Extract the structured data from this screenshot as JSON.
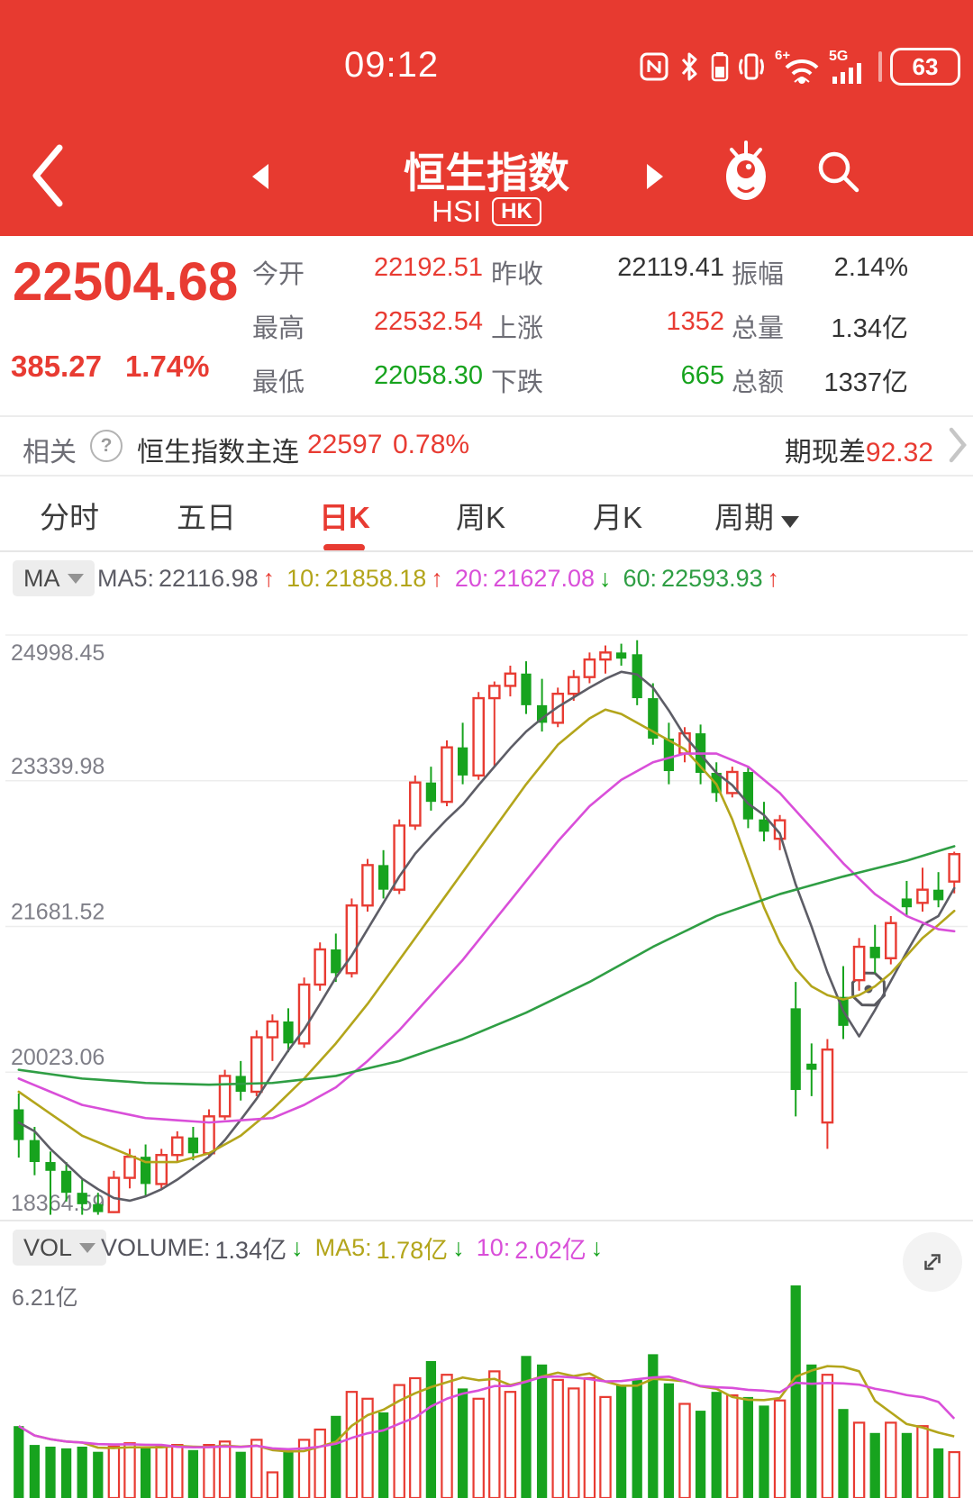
{
  "colors": {
    "up": "#e83b32",
    "down": "#17a31e",
    "neutral": "#333333",
    "header_red": "#e73a30"
  },
  "status_bar": {
    "time": "09:12",
    "wifi_label": "6+",
    "signal_label": "5G",
    "battery_percent": "63"
  },
  "header": {
    "title": "恒生指数",
    "symbol": "HSI",
    "market_badge": "HK"
  },
  "quote": {
    "last_price": "22504.68",
    "change": "385.27",
    "change_percent": "1.74%",
    "stats": [
      {
        "label": "今开",
        "value": "22192.51",
        "color": "up"
      },
      {
        "label": "昨收",
        "value": "22119.41",
        "color": "neutral"
      },
      {
        "label": "振幅",
        "value": "2.14%",
        "color": "neutral"
      },
      {
        "label": "最高",
        "value": "22532.54",
        "color": "up"
      },
      {
        "label": "上涨",
        "value": "1352",
        "color": "up"
      },
      {
        "label": "总量",
        "value": "1.34亿",
        "color": "neutral"
      },
      {
        "label": "最低",
        "value": "22058.30",
        "color": "down"
      },
      {
        "label": "下跌",
        "value": "665",
        "color": "down"
      },
      {
        "label": "总额",
        "value": "1337亿",
        "color": "neutral"
      }
    ]
  },
  "related": {
    "label": "相关",
    "contract_name": "恒生指数主连",
    "price": "22597",
    "change_percent": "0.78%",
    "basis_label": "期现差",
    "basis_value": "92.32"
  },
  "tabs": {
    "items": [
      "分时",
      "五日",
      "日K",
      "周K",
      "月K"
    ],
    "active": "日K",
    "period_label": "周期"
  },
  "ma_panel": {
    "selector_label": "MA",
    "items": [
      {
        "label": "MA5:",
        "value": "22116.98",
        "arrow": "↑",
        "color": "#5d5d66",
        "arrow_color": "#e83b32"
      },
      {
        "label": "10:",
        "value": "21858.18",
        "arrow": "↑",
        "color": "#b3a51b",
        "arrow_color": "#e83b32"
      },
      {
        "label": "20:",
        "value": "21627.08",
        "arrow": "↓",
        "color": "#d94fd9",
        "arrow_color": "#17a31e"
      },
      {
        "label": "60:",
        "value": "22593.93",
        "arrow": "↑",
        "color": "#2f9e44",
        "arrow_color": "#e83b32"
      }
    ]
  },
  "vol_panel": {
    "selector_label": "VOL",
    "items": [
      {
        "label": "VOLUME:",
        "value": "1.34亿",
        "arrow": "↓",
        "color": "#55555e",
        "arrow_color": "#17a31e"
      },
      {
        "label": "MA5:",
        "value": "1.78亿",
        "arrow": "↓",
        "color": "#b3a51b",
        "arrow_color": "#17a31e"
      },
      {
        "label": "10:",
        "value": "2.02亿",
        "arrow": "↓",
        "color": "#d94fd9",
        "arrow_color": "#17a31e"
      }
    ]
  },
  "chart_data": [
    {
      "type": "candlestick",
      "title": "恒生指数 日K",
      "y_axis_labels": [
        "24998.45",
        "23339.98",
        "21681.52",
        "20023.06",
        "18364.59"
      ],
      "y_min": 18364.59,
      "y_max": 24998.45,
      "up_color": "#e83b32",
      "down_color": "#17a31e",
      "grid": true,
      "open": [
        19600,
        19250,
        19000,
        18900,
        18650,
        18520,
        18430,
        18820,
        19060,
        18750,
        19080,
        19280,
        19100,
        19520,
        19980,
        19800,
        20420,
        20600,
        20350,
        21020,
        21420,
        21150,
        21920,
        22380,
        22100,
        22830,
        23320,
        23100,
        23720,
        23400,
        24280,
        24420,
        24560,
        24200,
        24000,
        24330,
        24520,
        24720,
        24800,
        24780,
        24280,
        23820,
        23650,
        23880,
        23430,
        23200,
        23440,
        22900,
        22680,
        20750,
        20120,
        19450,
        20880,
        21070,
        21450,
        21320,
        22000,
        21950,
        22100,
        22192.51
      ],
      "high": [
        19780,
        19400,
        19120,
        19000,
        18800,
        18650,
        18900,
        19150,
        19200,
        19150,
        19350,
        19400,
        19600,
        20050,
        20150,
        20500,
        20680,
        20750,
        21100,
        21500,
        21600,
        22000,
        22450,
        22550,
        22900,
        23400,
        23500,
        23800,
        24000,
        24350,
        24470,
        24650,
        24700,
        24500,
        24400,
        24600,
        24800,
        24880,
        24900,
        24940,
        24450,
        24000,
        23950,
        23980,
        23550,
        23500,
        23500,
        23100,
        22950,
        21050,
        20350,
        20400,
        21230,
        21550,
        21700,
        21800,
        22200,
        22350,
        22300,
        22532.54
      ],
      "low": [
        19050,
        18850,
        18400,
        18550,
        18400,
        18400,
        18420,
        18700,
        18600,
        18700,
        19000,
        19020,
        19050,
        19480,
        19700,
        19750,
        20150,
        20250,
        20300,
        20950,
        21050,
        21100,
        21850,
        22000,
        22050,
        22780,
        23000,
        23050,
        23300,
        23350,
        23500,
        24300,
        24100,
        23900,
        23950,
        24250,
        24450,
        24560,
        24650,
        24200,
        23750,
        23300,
        23550,
        23300,
        23100,
        23150,
        22800,
        22650,
        22550,
        19520,
        19750,
        19150,
        20400,
        20950,
        21150,
        21250,
        21800,
        21850,
        21900,
        22058.3
      ],
      "close": [
        19250,
        19000,
        18900,
        18650,
        18520,
        18430,
        18820,
        19060,
        18750,
        19080,
        19280,
        19100,
        19520,
        19980,
        19800,
        20420,
        20600,
        20350,
        21020,
        21420,
        21150,
        21920,
        22380,
        22100,
        22830,
        23320,
        23100,
        23720,
        23400,
        24280,
        24420,
        24560,
        24200,
        24000,
        24330,
        24520,
        24720,
        24800,
        24730,
        24280,
        23820,
        23450,
        23880,
        23430,
        23200,
        23440,
        22900,
        22760,
        22890,
        19820,
        20050,
        20280,
        20550,
        21450,
        21320,
        21720,
        21900,
        22100,
        21980,
        22504.68
      ],
      "ma_series": [
        {
          "name": "MA5",
          "color": "#5d5d66",
          "values": [
            19450,
            19350,
            19150,
            18980,
            18810,
            18690,
            18590,
            18560,
            18610,
            18690,
            18800,
            18930,
            19060,
            19250,
            19480,
            19720,
            20000,
            20270,
            20510,
            20800,
            21100,
            21350,
            21650,
            21950,
            22250,
            22510,
            22710,
            22900,
            23070,
            23290,
            23500,
            23710,
            23900,
            24050,
            24180,
            24290,
            24400,
            24500,
            24580,
            24550,
            24400,
            24140,
            23850,
            23640,
            23430,
            23290,
            23080,
            22950,
            22740,
            22160,
            21680,
            21160,
            20720,
            20430,
            20730,
            21060,
            21390,
            21700,
            21800,
            22117
          ]
        },
        {
          "name": "MA10",
          "color": "#b3a51b",
          "values": [
            19800,
            19675,
            19550,
            19425,
            19300,
            19225,
            19150,
            19075,
            19000,
            19000,
            19000,
            19050,
            19100,
            19200,
            19300,
            19450,
            19600,
            19775,
            19950,
            20150,
            20350,
            20575,
            20800,
            21050,
            21300,
            21550,
            21800,
            22050,
            22300,
            22550,
            22800,
            23050,
            23300,
            23525,
            23750,
            23900,
            24050,
            24150,
            24100,
            24000,
            23900,
            23800,
            23700,
            23500,
            23300,
            22900,
            22400,
            21900,
            21500,
            21200,
            21000,
            20900,
            20850,
            20900,
            21000,
            21150,
            21350,
            21550,
            21700,
            21858
          ]
        },
        {
          "name": "MA20",
          "color": "#d94fd9",
          "values": [
            19950,
            19875,
            19800,
            19725,
            19650,
            19613,
            19575,
            19538,
            19500,
            19488,
            19475,
            19463,
            19450,
            19463,
            19475,
            19488,
            19500,
            19575,
            19650,
            19750,
            19850,
            20000,
            20150,
            20325,
            20500,
            20700,
            20900,
            21100,
            21300,
            21525,
            21750,
            21975,
            22200,
            22425,
            22650,
            22850,
            23050,
            23200,
            23350,
            23450,
            23550,
            23600,
            23650,
            23650,
            23650,
            23575,
            23500,
            23350,
            23200,
            23000,
            22800,
            22600,
            22400,
            22225,
            22050,
            21925,
            21800,
            21725,
            21650,
            21627
          ]
        },
        {
          "name": "MA60",
          "color": "#2f9e44",
          "values": [
            20050,
            20025,
            20000,
            19975,
            19950,
            19938,
            19925,
            19913,
            19900,
            19895,
            19890,
            19885,
            19880,
            19885,
            19890,
            19895,
            19900,
            19920,
            19940,
            19960,
            19980,
            20023,
            20065,
            20108,
            20150,
            20213,
            20275,
            20338,
            20400,
            20475,
            20550,
            20625,
            20700,
            20788,
            20875,
            20963,
            21050,
            21150,
            21250,
            21350,
            21450,
            21538,
            21625,
            21713,
            21800,
            21863,
            21925,
            21988,
            22050,
            22100,
            22150,
            22200,
            22250,
            22295,
            22340,
            22385,
            22430,
            22485,
            22540,
            22594
          ]
        }
      ]
    },
    {
      "type": "bar",
      "name": "volume",
      "unit": "亿",
      "axis_label": "6.21亿",
      "axis_value": 6.21,
      "values": [
        2.1,
        1.55,
        1.5,
        1.45,
        1.5,
        1.35,
        1.5,
        1.6,
        1.45,
        1.5,
        1.55,
        1.4,
        1.55,
        1.65,
        1.35,
        1.7,
        0.75,
        1.35,
        1.7,
        2.0,
        2.4,
        3.1,
        2.9,
        2.5,
        3.3,
        3.5,
        4.0,
        3.6,
        3.2,
        2.9,
        3.7,
        3.1,
        4.15,
        3.9,
        3.45,
        3.2,
        3.5,
        2.95,
        3.3,
        3.45,
        4.2,
        3.35,
        2.75,
        2.55,
        3.1,
        3.0,
        2.95,
        2.7,
        2.85,
        6.21,
        3.9,
        3.6,
        2.6,
        2.2,
        1.9,
        2.2,
        1.9,
        2.1,
        1.45,
        1.34
      ],
      "ma_windows": [
        5,
        10
      ],
      "ma_colors": [
        "#b3a51b",
        "#d94fd9"
      ]
    }
  ]
}
